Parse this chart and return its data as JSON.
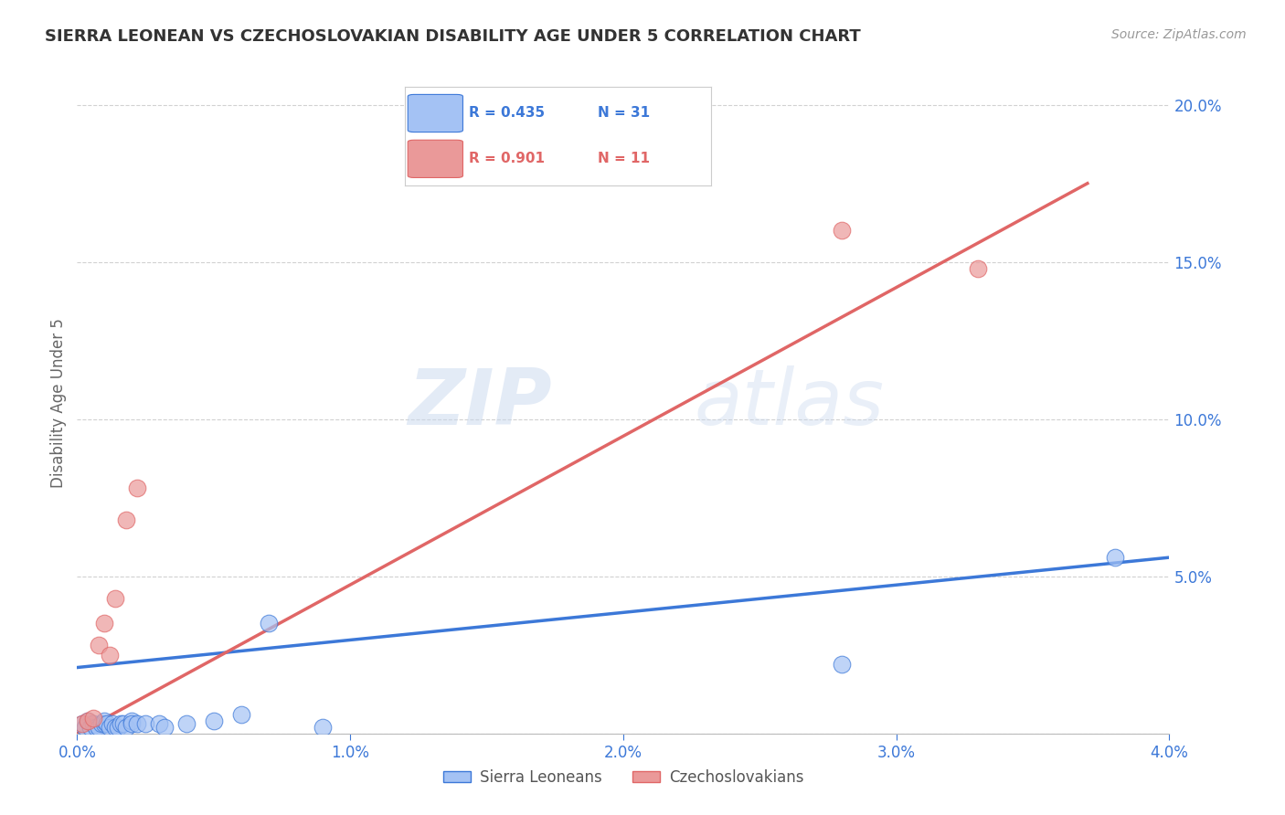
{
  "title": "SIERRA LEONEAN VS CZECHOSLOVAKIAN DISABILITY AGE UNDER 5 CORRELATION CHART",
  "source": "Source: ZipAtlas.com",
  "ylabel": "Disability Age Under 5",
  "xlim": [
    0.0,
    0.04
  ],
  "ylim": [
    0.0,
    0.21
  ],
  "x_ticks": [
    0.0,
    0.01,
    0.02,
    0.03,
    0.04
  ],
  "x_tick_labels": [
    "0.0%",
    "1.0%",
    "2.0%",
    "3.0%",
    "4.0%"
  ],
  "y_ticks": [
    0.0,
    0.05,
    0.1,
    0.15,
    0.2
  ],
  "y_tick_labels": [
    "",
    "5.0%",
    "10.0%",
    "15.0%",
    "20.0%"
  ],
  "blue_color": "#a4c2f4",
  "pink_color": "#ea9999",
  "blue_line_color": "#3c78d8",
  "pink_line_color": "#e06666",
  "legend_blue_r": "R = 0.435",
  "legend_blue_n": "N = 31",
  "legend_pink_r": "R = 0.901",
  "legend_pink_n": "N = 11",
  "legend_label_blue": "Sierra Leoneans",
  "legend_label_pink": "Czechoslovakians",
  "watermark_zip": "ZIP",
  "watermark_atlas": "atlas",
  "blue_scatter_x": [
    0.0002,
    0.0003,
    0.0004,
    0.0005,
    0.0006,
    0.0007,
    0.0008,
    0.0009,
    0.001,
    0.001,
    0.0011,
    0.0012,
    0.0013,
    0.0014,
    0.0015,
    0.0016,
    0.0017,
    0.0018,
    0.002,
    0.002,
    0.0022,
    0.0025,
    0.003,
    0.0032,
    0.004,
    0.005,
    0.006,
    0.007,
    0.009,
    0.028,
    0.038
  ],
  "blue_scatter_y": [
    0.003,
    0.002,
    0.004,
    0.002,
    0.003,
    0.002,
    0.002,
    0.003,
    0.003,
    0.004,
    0.003,
    0.002,
    0.003,
    0.002,
    0.002,
    0.003,
    0.003,
    0.002,
    0.004,
    0.003,
    0.003,
    0.003,
    0.003,
    0.002,
    0.003,
    0.004,
    0.006,
    0.035,
    0.002,
    0.022,
    0.056
  ],
  "pink_scatter_x": [
    0.0002,
    0.0004,
    0.0006,
    0.0008,
    0.001,
    0.0012,
    0.0014,
    0.0018,
    0.0022,
    0.028,
    0.033
  ],
  "pink_scatter_y": [
    0.003,
    0.004,
    0.005,
    0.028,
    0.035,
    0.025,
    0.043,
    0.068,
    0.078,
    0.16,
    0.148
  ],
  "blue_line_x": [
    0.0,
    0.04
  ],
  "blue_line_y": [
    0.021,
    0.056
  ],
  "pink_line_x": [
    0.0,
    0.037
  ],
  "pink_line_y": [
    0.0,
    0.175
  ]
}
